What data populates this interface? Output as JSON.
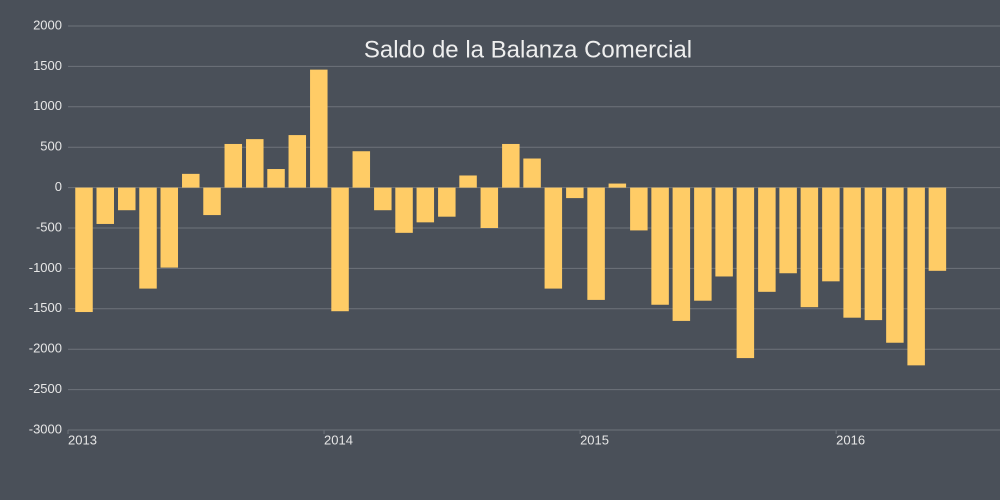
{
  "chart_data": {
    "type": "bar",
    "title": "Saldo de la Balanza Comercial",
    "x": [
      2013,
      2013.083,
      2013.167,
      2013.25,
      2013.333,
      2013.417,
      2013.5,
      2013.583,
      2013.667,
      2013.75,
      2013.833,
      2013.917,
      2014,
      2014.083,
      2014.167,
      2014.25,
      2014.333,
      2014.417,
      2014.5,
      2014.583,
      2014.667,
      2014.75,
      2014.833,
      2014.917,
      2015,
      2015.083,
      2015.167,
      2015.25,
      2015.333,
      2015.417,
      2015.5,
      2015.583,
      2015.667,
      2015.75,
      2015.833,
      2015.917,
      2016,
      2016.083,
      2016.167,
      2016.25,
      2016.333
    ],
    "values": [
      -1540,
      -450,
      -280,
      -1250,
      -990,
      170,
      -340,
      540,
      600,
      230,
      650,
      1460,
      -1530,
      450,
      -280,
      -560,
      -430,
      -360,
      150,
      -500,
      540,
      360,
      -1250,
      -130,
      -1390,
      50,
      -530,
      -1450,
      -1650,
      -1400,
      -1100,
      -2110,
      -1290,
      -1060,
      -1480,
      -1160,
      -1610,
      -1640,
      -1920,
      -2200,
      -1030
    ],
    "color": "#ffcc66",
    "xlim": [
      2013,
      2016.64
    ],
    "xticks": [
      2013,
      2014,
      2015,
      2016
    ],
    "ylim": [
      -3000,
      2000
    ],
    "yticks": [
      -3000,
      -2500,
      -2000,
      -1500,
      -1000,
      -500,
      0,
      500,
      1000,
      1500,
      2000
    ],
    "grid": true
  }
}
